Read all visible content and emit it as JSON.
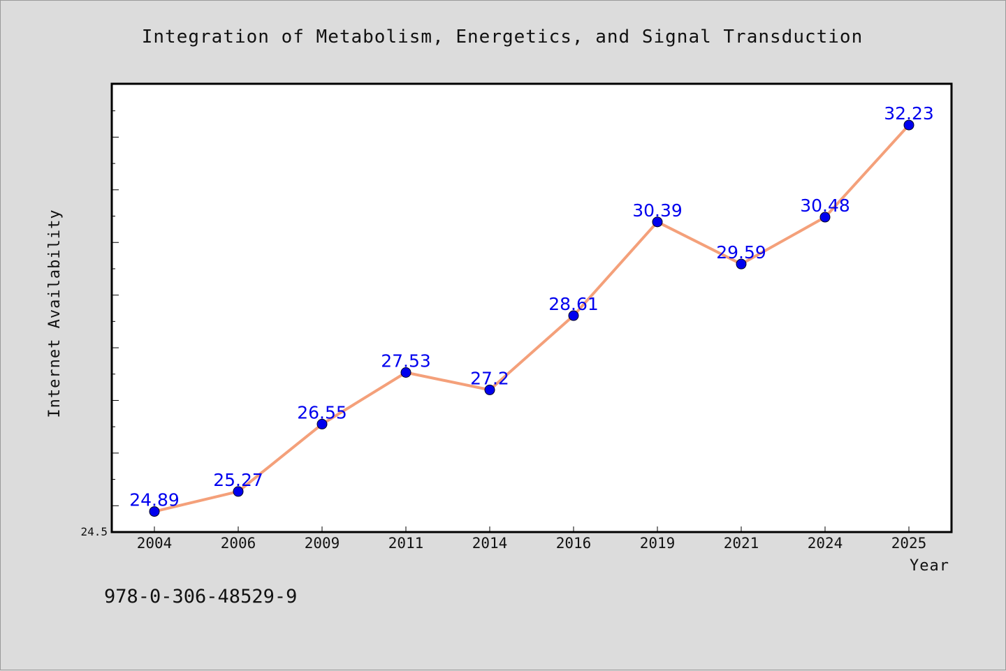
{
  "chart_data": {
    "type": "line",
    "title": "Integration of Metabolism, Energetics, and Signal Transduction",
    "xlabel": "Year",
    "ylabel": "Internet Availability",
    "categories": [
      "2004",
      "2006",
      "2009",
      "2011",
      "2014",
      "2016",
      "2019",
      "2021",
      "2024",
      "2025"
    ],
    "series": [
      {
        "values": [
          24.89,
          25.27,
          26.55,
          27.53,
          27.2,
          28.61,
          30.39,
          29.59,
          30.48,
          32.23
        ],
        "labels": [
          "24.89",
          "25.27",
          "26.55",
          "27.53",
          "27.2",
          "28.61",
          "30.39",
          "29.59",
          "30.48",
          "32.23"
        ]
      }
    ],
    "ylim": [
      24.5,
      33.0
    ],
    "yticks_labeled": [
      "24.5"
    ],
    "grid": false,
    "legend": "none",
    "colors": {
      "line": "#f4a07a",
      "marker": "#0000ee",
      "data_label": "#0000ee"
    }
  },
  "footnote": "978-0-306-48529-9"
}
